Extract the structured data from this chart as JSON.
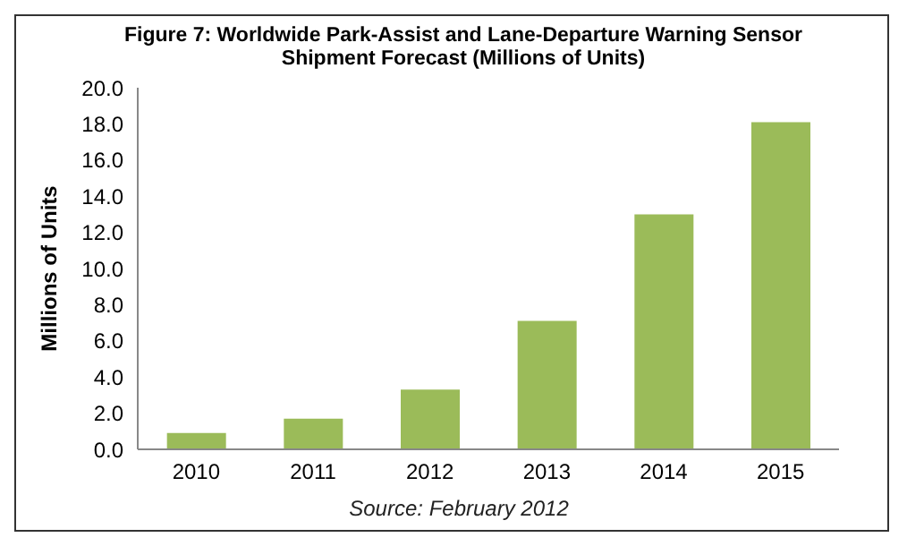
{
  "chart_data": {
    "type": "bar",
    "title": "Figure 7: Worldwide Park-Assist and Lane-Departure Warning Sensor Shipment Forecast (Millions of Units)",
    "ylabel": "Millions of Units",
    "categories": [
      "2010",
      "2011",
      "2012",
      "2013",
      "2014",
      "2015"
    ],
    "values": [
      0.9,
      1.7,
      3.3,
      7.1,
      13.0,
      18.1
    ],
    "color": "#9bbb59",
    "ylim": [
      0,
      20
    ],
    "yticks": [
      {
        "value": 0,
        "label": "0.0"
      },
      {
        "value": 2,
        "label": "2.0"
      },
      {
        "value": 4,
        "label": "4.0"
      },
      {
        "value": 6,
        "label": "6.0"
      },
      {
        "value": 8,
        "label": "8.0"
      },
      {
        "value": 10,
        "label": "10.0"
      },
      {
        "value": 12,
        "label": "12.0"
      },
      {
        "value": 14,
        "label": "14.0"
      },
      {
        "value": 16,
        "label": "16.0"
      },
      {
        "value": 18,
        "label": "18.0"
      },
      {
        "value": 20,
        "label": "20.0"
      }
    ],
    "grid": false,
    "annotations": [
      "Source: February 2012"
    ]
  }
}
